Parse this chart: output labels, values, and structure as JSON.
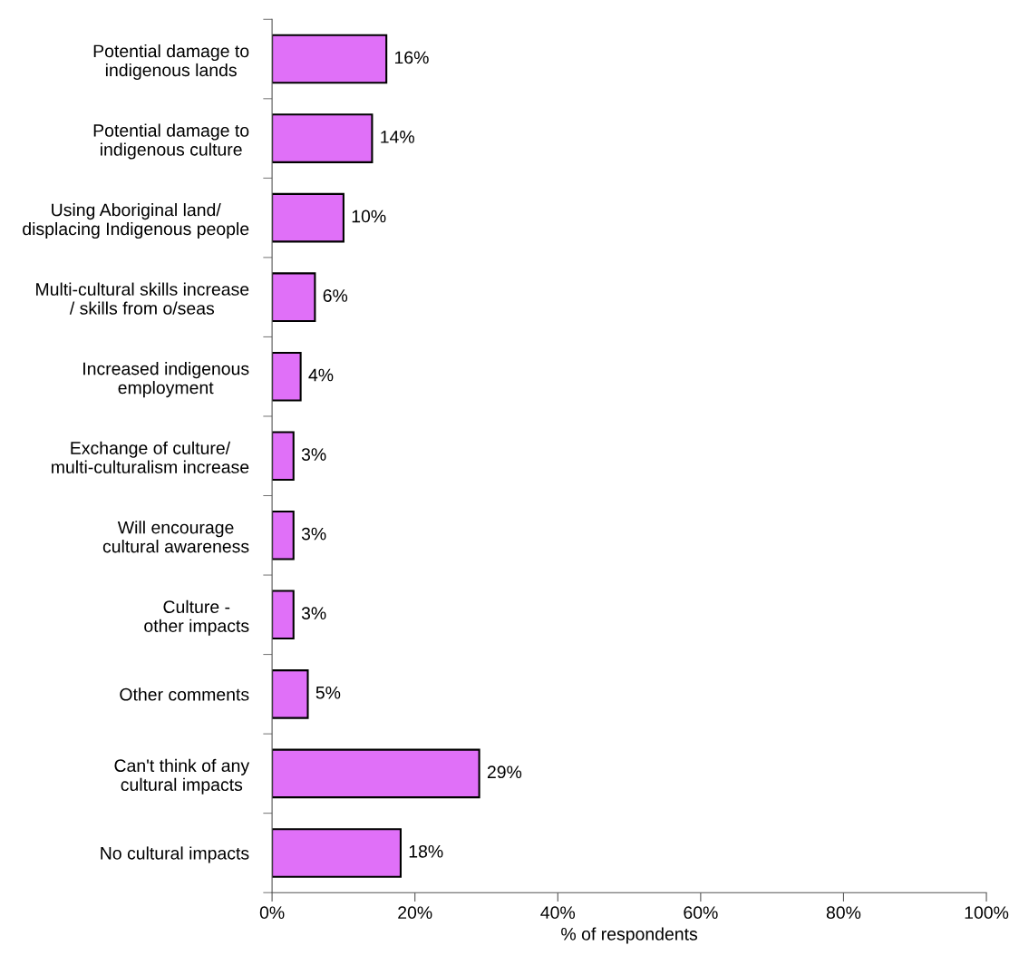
{
  "chart_data": {
    "type": "bar",
    "orientation": "horizontal",
    "xlabel": "% of respondents",
    "categories": [
      "Potential damage to\nindigenous lands",
      "Potential damage to\nindigenous culture",
      "Using Aboriginal land/\ndisplacing Indigenous people",
      "Multi-cultural skills increase\n/ skills from o/seas",
      "Increased indigenous\nemployment",
      "Exchange of culture/\nmulti-culturalism increase",
      "Will encourage\ncultural awareness",
      "Culture -\nother impacts",
      "Other comments",
      "Can't think of any\ncultural impacts",
      "No cultural impacts"
    ],
    "values": [
      16,
      14,
      10,
      6,
      4,
      3,
      3,
      3,
      5,
      29,
      18
    ],
    "value_labels": [
      "16%",
      "14%",
      "10%",
      "6%",
      "4%",
      "3%",
      "3%",
      "3%",
      "5%",
      "29%",
      "18%"
    ],
    "color": "#e070f8",
    "xlim": [
      0,
      100
    ],
    "xticks": [
      {
        "value": 0,
        "label": "0%"
      },
      {
        "value": 20,
        "label": "20%"
      },
      {
        "value": 40,
        "label": "40%"
      },
      {
        "value": 60,
        "label": "60%"
      },
      {
        "value": 80,
        "label": "80%"
      },
      {
        "value": 100,
        "label": "100%"
      }
    ],
    "grid": false,
    "legend": false
  }
}
